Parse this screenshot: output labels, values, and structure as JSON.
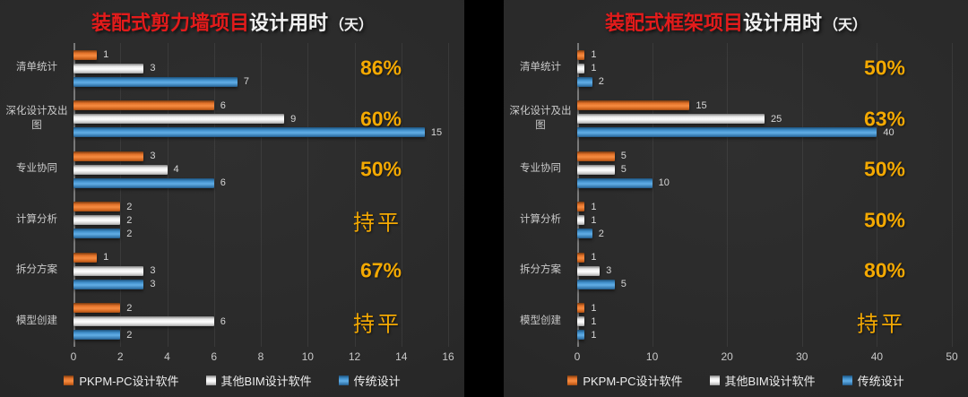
{
  "colors": {
    "page_bg": "#000000",
    "panel_bg": "#292929",
    "gridline": "#3d3d3d",
    "title_highlight_red": "#e31b1b",
    "title_white": "#f1f1f1",
    "reduction_gold": "#f4a902",
    "series_orange": "#ED7D31",
    "series_silver": "#E8E8E8",
    "series_blue": "#4D9EDC",
    "category_label": "#c9c9c9",
    "value_label": "#d6d6d6"
  },
  "chart_data": [
    {
      "type": "bar",
      "orientation": "horizontal",
      "title": {
        "highlight": "装配式剪力墙项目",
        "rest": "设计用时",
        "unit": "（天）"
      },
      "categories": [
        "清单统计",
        "深化设计及出图",
        "专业协同",
        "计算分析",
        "拆分方案",
        "模型创建"
      ],
      "series": [
        {
          "name": "PKPM-PC设计软件",
          "color": "#ED7D31",
          "values": [
            1,
            6,
            3,
            2,
            1,
            2
          ]
        },
        {
          "name": "其他BIM设计软件",
          "color": "#E8E8E8",
          "values": [
            3,
            9,
            4,
            2,
            3,
            6
          ]
        },
        {
          "name": "传统设计",
          "color": "#4D9EDC",
          "values": [
            7,
            15,
            6,
            2,
            3,
            2
          ]
        }
      ],
      "reduction_labels": [
        "86%",
        "60%",
        "50%",
        "持平",
        "67%",
        "持平"
      ],
      "xlim": [
        0,
        16
      ],
      "xticks": [
        0,
        2,
        4,
        6,
        8,
        10,
        12,
        14,
        16
      ],
      "grid": true,
      "legend_position": "bottom"
    },
    {
      "type": "bar",
      "orientation": "horizontal",
      "title": {
        "highlight": "装配式框架项目",
        "rest": "设计用时",
        "unit": "（天）"
      },
      "categories": [
        "清单统计",
        "深化设计及出图",
        "专业协同",
        "计算分析",
        "拆分方案",
        "模型创建"
      ],
      "series": [
        {
          "name": "PKPM-PC设计软件",
          "color": "#ED7D31",
          "values": [
            1,
            15,
            5,
            1,
            1,
            1
          ]
        },
        {
          "name": "其他BIM设计软件",
          "color": "#E8E8E8",
          "values": [
            1,
            25,
            5,
            1,
            3,
            1
          ]
        },
        {
          "name": "传统设计",
          "color": "#4D9EDC",
          "values": [
            2,
            40,
            10,
            2,
            5,
            1
          ]
        }
      ],
      "reduction_labels": [
        "50%",
        "63%",
        "50%",
        "50%",
        "80%",
        "持平"
      ],
      "xlim": [
        0,
        50
      ],
      "xticks": [
        0,
        10,
        20,
        30,
        40,
        50
      ],
      "grid": true,
      "legend_position": "bottom"
    }
  ]
}
